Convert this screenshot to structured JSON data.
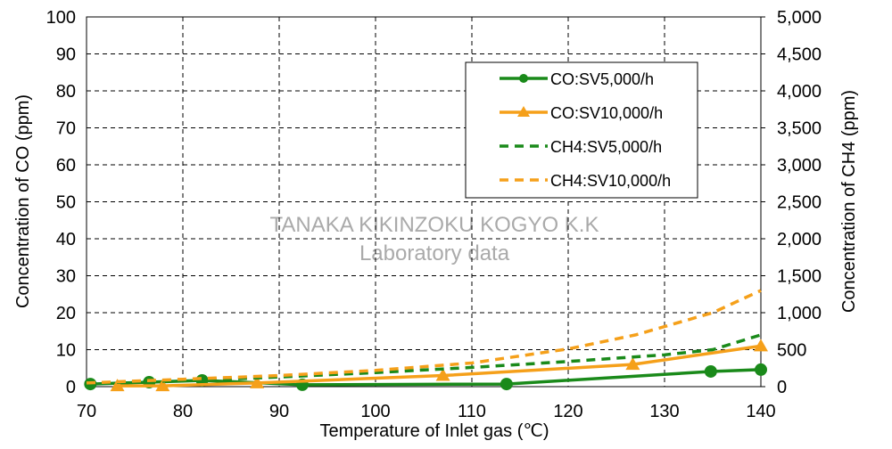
{
  "chart_data": {
    "type": "line",
    "x_label": "Temperature of Inlet gas (℃)",
    "y_label": "Concentration of CO (ppm)",
    "y2_label": "Concentration of CH4 (ppm)",
    "annotations": [
      "TANAKA KIKINZOKU KOGYO K.K",
      "Laboratory data"
    ],
    "xlim": [
      70,
      140
    ],
    "xticks": [
      70,
      80,
      90,
      100,
      110,
      120,
      130,
      140
    ],
    "ylim": [
      0,
      100
    ],
    "yticks": [
      0,
      10,
      20,
      30,
      40,
      50,
      60,
      70,
      80,
      90,
      100
    ],
    "y2lim": [
      0,
      5000
    ],
    "y2ticks": [
      0,
      500,
      {
        "value": 1000,
        "label": "1,000"
      },
      {
        "value": 1500,
        "label": "1,500"
      },
      {
        "value": 2000,
        "label": "2,000"
      },
      {
        "value": 2500,
        "label": "2,500"
      },
      {
        "value": 3000,
        "label": "3,000"
      },
      {
        "value": 3500,
        "label": "3,500"
      },
      {
        "value": 4000,
        "label": "4,000"
      },
      {
        "value": 4500,
        "label": "4,500"
      },
      {
        "value": 5000,
        "label": "5,000"
      }
    ],
    "grid": true,
    "legend": "upper right",
    "series": [
      {
        "name": "CO:SV5,000/h",
        "color": "#1a8a1a",
        "style": "solid",
        "marker": "circle",
        "x": [
          70.4,
          76.5,
          82,
          92.4,
          113.6,
          134.8,
          140
        ],
        "values": [
          0.7,
          1.2,
          1.7,
          0.5,
          0.7,
          4.1,
          4.6
        ]
      },
      {
        "name": "CO:SV10,000/h",
        "color": "#f5a01a",
        "style": "solid",
        "marker": "triangle",
        "x": [
          73.2,
          77.9,
          87.7,
          107,
          126.7,
          140
        ],
        "values": [
          0.2,
          0.2,
          1,
          3,
          6,
          11
        ]
      },
      {
        "name": "CH4:SV5,000/h",
        "color": "#1a8a1a",
        "style": "dashed",
        "axis": "y2",
        "x": [
          70,
          80,
          90,
          100,
          110,
          120,
          130,
          135,
          140
        ],
        "values": [
          50,
          80,
          130,
          190,
          260,
          340,
          430,
          500,
          700
        ]
      },
      {
        "name": "CH4:SV10,000/h",
        "color": "#f5a01a",
        "style": "dashed",
        "axis": "y2",
        "x": [
          70,
          80,
          90,
          100,
          110,
          120,
          127,
          135,
          140
        ],
        "values": [
          50,
          100,
          150,
          220,
          320,
          510,
          700,
          1000,
          1300
        ]
      }
    ]
  }
}
